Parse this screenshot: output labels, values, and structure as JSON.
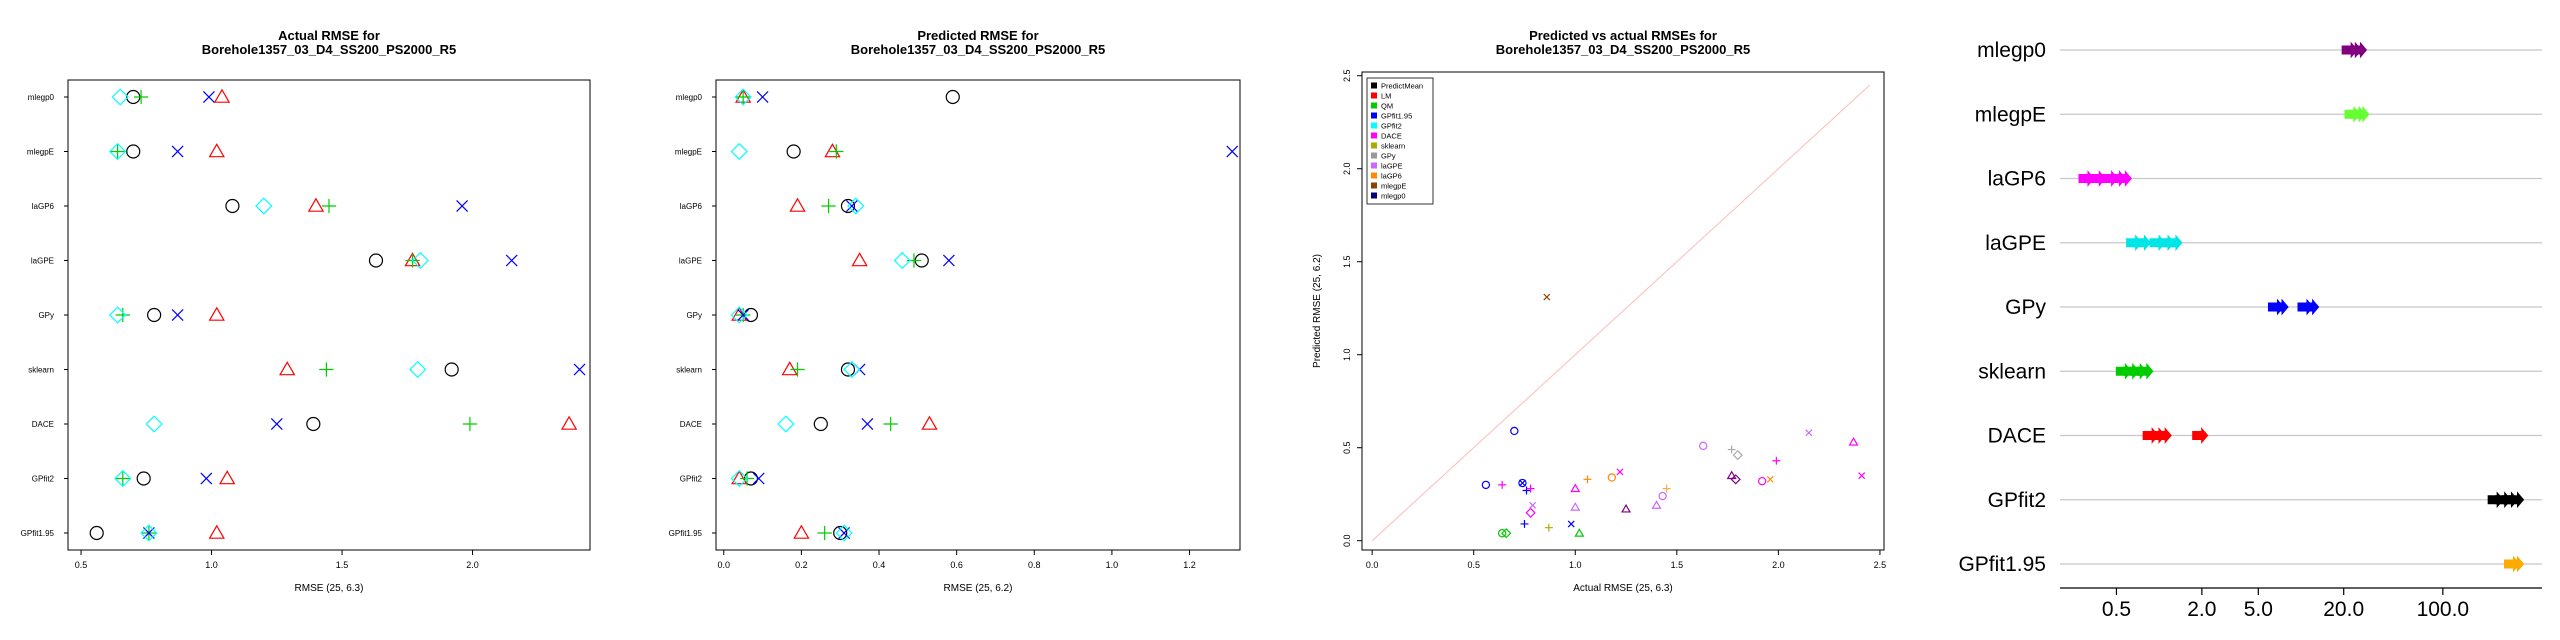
{
  "colors": {
    "PredictMean": "#000000",
    "LM": "#ff0000",
    "QM": "#00cc00",
    "GPfit1.95": "#0000ff",
    "GPfit2": "#00ffff",
    "DACE": "#ff00ff",
    "sklearn": "#aaaa00",
    "GPy": "#999999",
    "laGPE": "#cc66ff",
    "laGP6": "#ff8800",
    "mlegpE": "#884400",
    "mlegp0": "#000080",
    "p4_mlegp0": "#800080",
    "p4_mlegpE": "#66ff33",
    "p4_laGP6": "#ff00ff",
    "p4_laGPE": "#00e5e5",
    "p4_GPy": "#0000ff",
    "p4_sklearn": "#00cc00",
    "p4_DACE": "#ff0000",
    "p4_GPfit2": "#000000",
    "p4_GPfit1.95": "#ffaa00",
    "diag": "#ffbbbb"
  },
  "chart_data": [
    {
      "type": "scatter",
      "title": "Actual RMSE for\nBorehole1357_03_D4_SS200_PS2000_R5",
      "xlabel": "RMSE (25, 6.3)",
      "ylabel": "",
      "categories": [
        "mlegp0",
        "mlegpE",
        "laGP6",
        "laGPE",
        "GPy",
        "sklearn",
        "DACE",
        "GPfit2",
        "GPfit1.95"
      ],
      "xlim": [
        0.45,
        2.45
      ],
      "xticks": [
        "0.5",
        "1.0",
        "1.5",
        "2.0"
      ],
      "series": [
        {
          "marker": "circle",
          "color": "#000000",
          "values": [
            0.7,
            0.7,
            1.08,
            1.63,
            0.78,
            1.92,
            1.39,
            0.74,
            0.56
          ]
        },
        {
          "marker": "triangle",
          "color": "#ff0000",
          "values": [
            1.04,
            1.02,
            1.4,
            1.77,
            1.02,
            1.29,
            2.37,
            1.06,
            1.02
          ]
        },
        {
          "marker": "plus",
          "color": "#00cc00",
          "values": [
            0.73,
            0.64,
            1.45,
            1.77,
            0.66,
            1.44,
            1.99,
            0.66,
            0.76
          ]
        },
        {
          "marker": "cross",
          "color": "#0000ff",
          "values": [
            0.99,
            0.87,
            1.96,
            2.15,
            0.87,
            2.41,
            1.25,
            0.98,
            0.76
          ]
        },
        {
          "marker": "diamond",
          "color": "#00ffff",
          "values": [
            0.65,
            0.64,
            1.2,
            1.8,
            0.64,
            1.79,
            0.78,
            0.66,
            0.76
          ]
        }
      ]
    },
    {
      "type": "scatter",
      "title": "Predicted RMSE for\nBorehole1357_03_D4_SS200_PS2000_R5",
      "xlabel": "RMSE (25, 6.2)",
      "ylabel": "",
      "categories": [
        "mlegp0",
        "mlegpE",
        "laGP6",
        "laGPE",
        "GPy",
        "sklearn",
        "DACE",
        "GPfit2",
        "GPfit1.95"
      ],
      "xlim": [
        -0.02,
        1.33
      ],
      "xticks": [
        "0.0",
        "0.2",
        "0.4",
        "0.6",
        "0.8",
        "1.0",
        "1.2"
      ],
      "series": [
        {
          "marker": "circle",
          "color": "#000000",
          "values": [
            0.59,
            0.18,
            0.32,
            0.51,
            0.07,
            0.32,
            0.25,
            0.07,
            0.3
          ]
        },
        {
          "marker": "triangle",
          "color": "#ff0000",
          "values": [
            0.05,
            0.28,
            0.19,
            0.35,
            0.04,
            0.17,
            0.53,
            0.04,
            0.2
          ]
        },
        {
          "marker": "plus",
          "color": "#00cc00",
          "values": [
            0.05,
            0.29,
            0.27,
            0.49,
            0.05,
            0.19,
            0.43,
            0.06,
            0.26
          ]
        },
        {
          "marker": "cross",
          "color": "#0000ff",
          "values": [
            0.1,
            1.31,
            0.33,
            0.58,
            0.05,
            0.35,
            0.37,
            0.09,
            0.31
          ]
        },
        {
          "marker": "diamond",
          "color": "#00ffff",
          "values": [
            0.05,
            0.04,
            0.34,
            0.46,
            0.04,
            0.33,
            0.16,
            0.04,
            0.31
          ]
        }
      ]
    },
    {
      "type": "scatter",
      "title": "Predicted vs actual RMSEs for\nBorehole1357_03_D4_SS200_PS2000_R5",
      "xlabel": "Actual RMSE (25, 6.3)",
      "ylabel": "Predicted RMSE (25, 6.2)",
      "xlim": [
        -0.05,
        2.52
      ],
      "ylim": [
        -0.05,
        2.52
      ],
      "xticks": [
        "0.0",
        "0.5",
        "1.0",
        "1.5",
        "2.0",
        "2.5"
      ],
      "yticks": [
        "0.0",
        "0.5",
        "1.0",
        "1.5",
        "2.0",
        "2.5"
      ],
      "legend": [
        "PredictMean",
        "LM",
        "QM",
        "GPfit1.95",
        "GPfit2",
        "DACE",
        "sklearn",
        "GPy",
        "laGPE",
        "laGP6",
        "mlegpE",
        "mlegp0"
      ],
      "legend_position": "top-left",
      "points": [
        {
          "x": 0.7,
          "y": 0.59,
          "marker": "circle",
          "color": "#0000ff"
        },
        {
          "x": 0.56,
          "y": 0.3,
          "marker": "circle",
          "color": "#0000ff"
        },
        {
          "x": 0.74,
          "y": 0.31,
          "marker": "circle",
          "color": "#0000ff"
        },
        {
          "x": 0.74,
          "y": 0.31,
          "marker": "cross",
          "color": "#0000ff"
        },
        {
          "x": 0.76,
          "y": 0.27,
          "marker": "plus",
          "color": "#0000ff"
        },
        {
          "x": 0.75,
          "y": 0.09,
          "marker": "plus",
          "color": "#0000ff"
        },
        {
          "x": 0.98,
          "y": 0.09,
          "marker": "cross",
          "color": "#0000ff"
        },
        {
          "x": 0.86,
          "y": 1.31,
          "marker": "cross",
          "color": "#884400"
        },
        {
          "x": 0.64,
          "y": 0.3,
          "marker": "plus",
          "color": "#ff00ff"
        },
        {
          "x": 0.66,
          "y": 0.04,
          "marker": "diamond",
          "color": "#00cc00"
        },
        {
          "x": 0.64,
          "y": 0.04,
          "marker": "circle",
          "color": "#00cc00"
        },
        {
          "x": 1.02,
          "y": 0.04,
          "marker": "triangle",
          "color": "#00cc00"
        },
        {
          "x": 0.87,
          "y": 0.07,
          "marker": "plus",
          "color": "#aaaa00"
        },
        {
          "x": 1.0,
          "y": 0.28,
          "marker": "triangle",
          "color": "#ff00ff"
        },
        {
          "x": 1.0,
          "y": 0.18,
          "marker": "triangle",
          "color": "#cc66ff"
        },
        {
          "x": 0.78,
          "y": 0.15,
          "marker": "diamond",
          "color": "#ff00ff"
        },
        {
          "x": 0.79,
          "y": 0.19,
          "marker": "cross",
          "color": "#cc66ff"
        },
        {
          "x": 1.06,
          "y": 0.33,
          "marker": "plus",
          "color": "#ff8800"
        },
        {
          "x": 1.18,
          "y": 0.34,
          "marker": "circle",
          "color": "#ff8800"
        },
        {
          "x": 1.22,
          "y": 0.37,
          "marker": "cross",
          "color": "#ff00ff"
        },
        {
          "x": 1.43,
          "y": 0.24,
          "marker": "circle",
          "color": "#cc66ff"
        },
        {
          "x": 1.4,
          "y": 0.19,
          "marker": "triangle",
          "color": "#cc66ff"
        },
        {
          "x": 1.45,
          "y": 0.28,
          "marker": "plus",
          "color": "#ffaa44"
        },
        {
          "x": 1.63,
          "y": 0.51,
          "marker": "circle",
          "color": "#cc66ff"
        },
        {
          "x": 1.77,
          "y": 0.35,
          "marker": "triangle",
          "color": "#800080"
        },
        {
          "x": 1.79,
          "y": 0.33,
          "marker": "diamond",
          "color": "#800080"
        },
        {
          "x": 1.8,
          "y": 0.46,
          "marker": "diamond",
          "color": "#aaaaaa"
        },
        {
          "x": 1.77,
          "y": 0.49,
          "marker": "plus",
          "color": "#aaaaaa"
        },
        {
          "x": 1.92,
          "y": 0.32,
          "marker": "circle",
          "color": "#ff00ff"
        },
        {
          "x": 1.96,
          "y": 0.33,
          "marker": "cross",
          "color": "#ff8800"
        },
        {
          "x": 1.99,
          "y": 0.43,
          "marker": "plus",
          "color": "#ff00ff"
        },
        {
          "x": 2.15,
          "y": 0.58,
          "marker": "cross",
          "color": "#cc66ff"
        },
        {
          "x": 2.37,
          "y": 0.53,
          "marker": "triangle",
          "color": "#ff00ff"
        },
        {
          "x": 2.41,
          "y": 0.35,
          "marker": "cross",
          "color": "#ff00ff"
        },
        {
          "x": 1.25,
          "y": 0.17,
          "marker": "triangle",
          "color": "#800080"
        },
        {
          "x": 0.78,
          "y": 0.28,
          "marker": "plus",
          "color": "#ff00ff"
        }
      ],
      "diagonal": true
    },
    {
      "type": "scatter",
      "title": "",
      "xlabel": "",
      "ylabel": "",
      "categories": [
        "mlegp0",
        "mlegpE",
        "laGP6",
        "laGPE",
        "GPy",
        "sklearn",
        "DACE",
        "GPfit2",
        "GPfit1.95"
      ],
      "xscale": "log",
      "xlim": [
        0.2,
        500
      ],
      "xticks": [
        0.5,
        2.0,
        5.0,
        20.0,
        100.0
      ],
      "xtick_labels": [
        "0.5",
        "2.0",
        "5.0",
        "20.0",
        "100.0"
      ],
      "series": [
        {
          "category": "mlegp0",
          "marker": "arrow",
          "values": [
            21.5,
            23.0,
            25.0
          ]
        },
        {
          "category": "mlegpE",
          "marker": "arrow",
          "values": [
            22.5,
            24.5,
            26.0
          ]
        },
        {
          "category": "laGP6",
          "marker": "arrow",
          "values": [
            0.3,
            0.36,
            0.44,
            0.5,
            0.55
          ]
        },
        {
          "category": "laGPE",
          "marker": "arrow",
          "values": [
            0.65,
            0.75,
            0.95,
            1.1,
            1.25
          ]
        },
        {
          "category": "GPy",
          "marker": "arrow",
          "values": [
            6.5,
            7.0,
            10.5,
            11.5
          ]
        },
        {
          "category": "sklearn",
          "marker": "arrow",
          "values": [
            0.55,
            0.62,
            0.7,
            0.78
          ]
        },
        {
          "category": "DACE",
          "marker": "arrow",
          "values": [
            0.85,
            0.95,
            1.05,
            1.9
          ]
        },
        {
          "category": "GPfit2",
          "marker": "arrow",
          "values": [
            230,
            260,
            290,
            320
          ]
        },
        {
          "category": "GPfit1.95",
          "marker": "arrow",
          "values": [
            300,
            320
          ]
        }
      ]
    }
  ]
}
